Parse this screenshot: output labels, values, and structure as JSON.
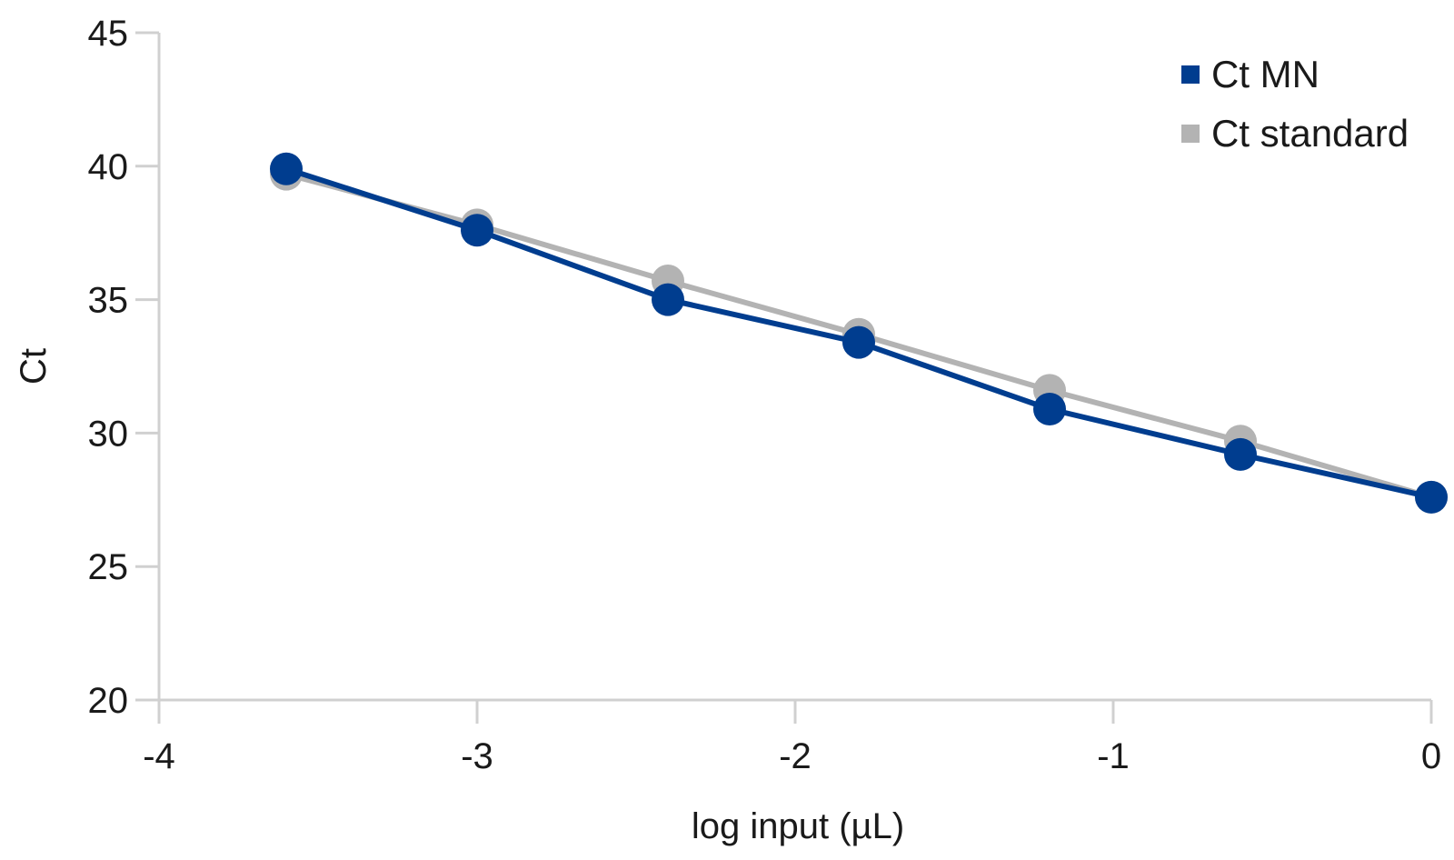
{
  "chart_data": {
    "type": "line",
    "title": "",
    "xlabel": "log input (µL)",
    "ylabel": "Ct",
    "xlim": [
      -4,
      0
    ],
    "ylim": [
      20,
      45
    ],
    "xticks": [
      -4,
      -3,
      -2,
      -1,
      0
    ],
    "xtick_labels": [
      "-4",
      "-3",
      "-2",
      "-1",
      "0"
    ],
    "yticks": [
      20,
      25,
      30,
      35,
      40,
      45
    ],
    "ytick_labels": [
      "20",
      "25",
      "30",
      "35",
      "40",
      "45"
    ],
    "grid": false,
    "legend_position": "top-right",
    "x": [
      -3.6,
      -3.0,
      -2.4,
      -1.8,
      -1.2,
      -0.6,
      0.0
    ],
    "series": [
      {
        "name": "Ct standard",
        "color": "#b3b3b3",
        "values": [
          39.7,
          37.8,
          35.7,
          33.7,
          31.6,
          29.7,
          27.6
        ]
      },
      {
        "name": "Ct MN",
        "color": "#003d8f",
        "values": [
          39.9,
          37.6,
          35.0,
          33.4,
          30.9,
          29.2,
          27.6
        ]
      }
    ],
    "legend": [
      "Ct MN",
      "Ct standard"
    ],
    "axis_color": "#d0d0d0"
  }
}
